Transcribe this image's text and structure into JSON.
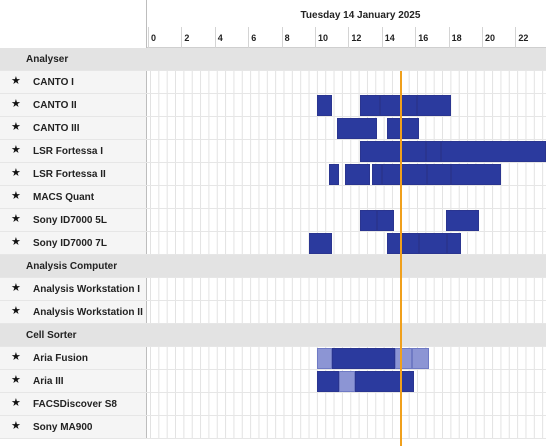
{
  "header": {
    "date_title": "Tuesday 14 January 2025",
    "hours": [
      "0",
      "2",
      "4",
      "6",
      "8",
      "10",
      "12",
      "14",
      "16",
      "18",
      "20",
      "22"
    ]
  },
  "colors": {
    "booking": "#2b3a9e",
    "booking_light": "#8c95d4",
    "now_line": "#f0a01c",
    "group_bg": "#e3e3e3"
  },
  "timeline": {
    "start_hour": 0,
    "end_hour": 24,
    "now_hour": 15.0
  },
  "rows": [
    {
      "type": "group",
      "label": "Analyser"
    },
    {
      "type": "resource",
      "label": "CANTO I",
      "bookings": []
    },
    {
      "type": "resource",
      "label": "CANTO II",
      "bookings": [
        {
          "start": 10.0,
          "end": 10.9,
          "shade": "dark"
        },
        {
          "start": 12.6,
          "end": 13.8,
          "shade": "dark"
        },
        {
          "start": 13.8,
          "end": 16.0,
          "shade": "dark"
        },
        {
          "start": 16.0,
          "end": 18.0,
          "shade": "dark"
        }
      ]
    },
    {
      "type": "resource",
      "label": "CANTO III",
      "bookings": [
        {
          "start": 11.2,
          "end": 13.6,
          "shade": "dark"
        },
        {
          "start": 14.2,
          "end": 16.1,
          "shade": "dark"
        }
      ]
    },
    {
      "type": "resource",
      "label": "LSR Fortessa I",
      "bookings": [
        {
          "start": 12.6,
          "end": 16.5,
          "shade": "dark"
        },
        {
          "start": 16.5,
          "end": 17.4,
          "shade": "dark"
        },
        {
          "start": 17.4,
          "end": 24.0,
          "shade": "dark"
        }
      ]
    },
    {
      "type": "resource",
      "label": "LSR Fortessa II",
      "bookings": [
        {
          "start": 10.7,
          "end": 11.3,
          "shade": "dark"
        },
        {
          "start": 11.7,
          "end": 13.2,
          "shade": "dark"
        },
        {
          "start": 13.3,
          "end": 13.9,
          "shade": "dark"
        },
        {
          "start": 13.9,
          "end": 16.6,
          "shade": "dark"
        },
        {
          "start": 16.6,
          "end": 18.0,
          "shade": "dark"
        },
        {
          "start": 18.0,
          "end": 21.0,
          "shade": "dark"
        }
      ]
    },
    {
      "type": "resource",
      "label": "MACS Quant",
      "bookings": []
    },
    {
      "type": "resource",
      "label": "Sony ID7000 5L",
      "bookings": [
        {
          "start": 12.6,
          "end": 13.6,
          "shade": "dark"
        },
        {
          "start": 13.6,
          "end": 14.6,
          "shade": "dark"
        },
        {
          "start": 17.7,
          "end": 19.7,
          "shade": "dark"
        }
      ]
    },
    {
      "type": "resource",
      "label": "Sony ID7000 7L",
      "bookings": [
        {
          "start": 9.5,
          "end": 10.9,
          "shade": "dark"
        },
        {
          "start": 14.2,
          "end": 16.1,
          "shade": "dark"
        },
        {
          "start": 16.1,
          "end": 17.8,
          "shade": "dark"
        },
        {
          "start": 17.8,
          "end": 18.6,
          "shade": "dark"
        }
      ]
    },
    {
      "type": "group",
      "label": "Analysis Computer"
    },
    {
      "type": "resource",
      "label": "Analysis Workstation I",
      "bookings": []
    },
    {
      "type": "resource",
      "label": "Analysis Workstation II",
      "bookings": []
    },
    {
      "type": "group",
      "label": "Cell Sorter"
    },
    {
      "type": "resource",
      "label": "Aria Fusion",
      "bookings": [
        {
          "start": 10.0,
          "end": 10.9,
          "shade": "light"
        },
        {
          "start": 10.9,
          "end": 14.7,
          "shade": "dark"
        },
        {
          "start": 14.7,
          "end": 15.7,
          "shade": "light"
        },
        {
          "start": 15.7,
          "end": 16.7,
          "shade": "light"
        }
      ]
    },
    {
      "type": "resource",
      "label": "Aria III",
      "bookings": [
        {
          "start": 10.0,
          "end": 11.3,
          "shade": "dark"
        },
        {
          "start": 11.3,
          "end": 12.3,
          "shade": "light"
        },
        {
          "start": 12.3,
          "end": 15.8,
          "shade": "dark"
        }
      ]
    },
    {
      "type": "resource",
      "label": "FACSDiscover S8",
      "bookings": []
    },
    {
      "type": "resource",
      "label": "Sony MA900",
      "bookings": []
    }
  ]
}
